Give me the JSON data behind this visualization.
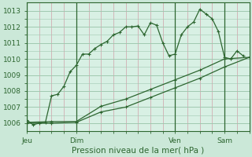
{
  "title": "",
  "xlabel": "Pression niveau de la mer( hPa )",
  "ylabel": "",
  "bg_color": "#cbe8d8",
  "plot_bg_color": "#d8f0e4",
  "grid_major_color": "#a0c8b0",
  "grid_minor_color": "#d0a0a8",
  "line_color": "#2d6630",
  "ylim": [
    1005.5,
    1013.5
  ],
  "xlim": [
    0,
    36
  ],
  "yticks": [
    1006,
    1007,
    1008,
    1009,
    1010,
    1011,
    1012,
    1013
  ],
  "xtick_positions": [
    0,
    8,
    24,
    32
  ],
  "xtick_labels": [
    "Jeu",
    "Dim",
    "Ven",
    "Sam"
  ],
  "vlines": [
    0,
    8,
    24,
    32
  ],
  "series1_x": [
    0,
    1,
    2,
    3,
    4,
    5,
    6,
    7,
    8,
    9,
    10,
    11,
    12,
    13,
    14,
    15,
    16,
    17,
    18,
    19,
    20,
    21,
    22,
    23,
    24,
    25,
    26,
    27,
    28,
    29,
    30,
    31,
    32,
    33,
    34,
    35
  ],
  "series1_y": [
    1006.2,
    1005.9,
    1006.0,
    1006.05,
    1007.7,
    1007.8,
    1008.3,
    1009.2,
    1009.6,
    1010.3,
    1010.3,
    1010.65,
    1010.9,
    1011.1,
    1011.5,
    1011.65,
    1012.0,
    1012.0,
    1012.05,
    1011.5,
    1012.25,
    1012.1,
    1011.0,
    1010.2,
    1010.3,
    1011.5,
    1012.0,
    1012.3,
    1013.1,
    1012.8,
    1012.5,
    1011.7,
    1010.1,
    1010.0,
    1010.5,
    1010.2
  ],
  "series2_x": [
    0,
    4,
    8,
    12,
    16,
    20,
    24,
    28,
    32,
    36
  ],
  "series2_y": [
    1006.05,
    1006.1,
    1006.1,
    1007.05,
    1007.5,
    1008.1,
    1008.7,
    1009.3,
    1010.0,
    1010.1
  ],
  "series3_x": [
    0,
    4,
    8,
    12,
    16,
    20,
    24,
    28,
    32,
    36
  ],
  "series3_y": [
    1006.0,
    1006.0,
    1006.05,
    1006.7,
    1007.0,
    1007.6,
    1008.2,
    1008.8,
    1009.5,
    1010.1
  ]
}
